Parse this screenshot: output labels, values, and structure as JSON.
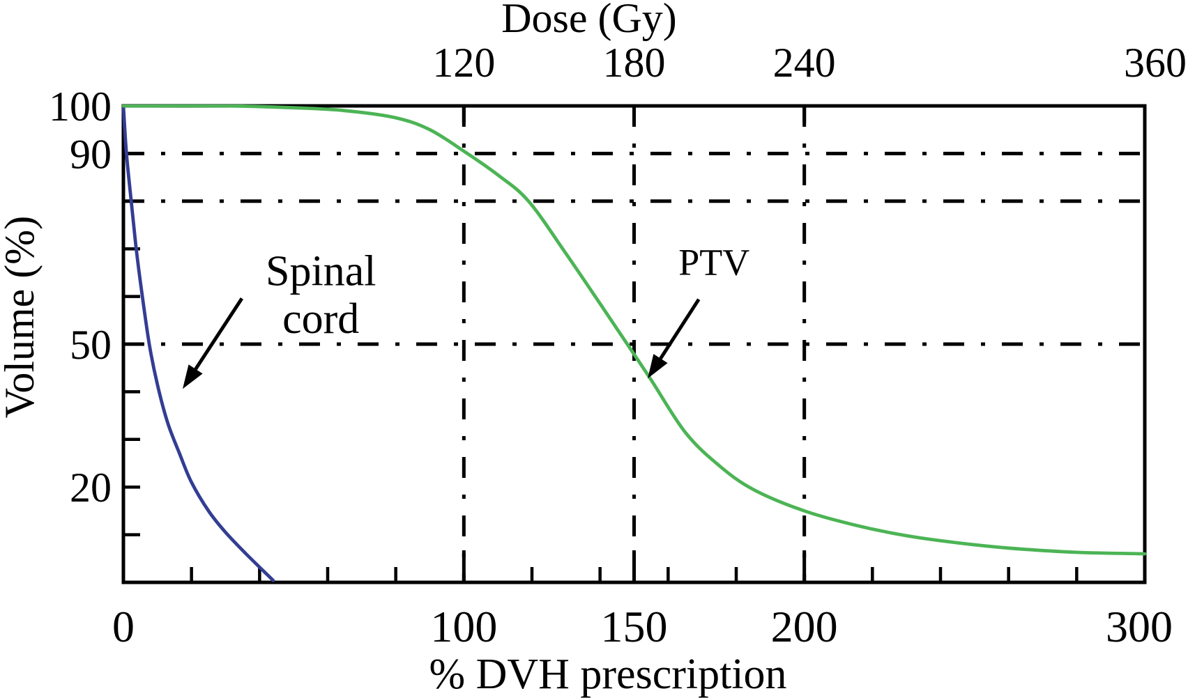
{
  "figure": {
    "background": "#ffffff",
    "ink_color": "#000000"
  },
  "chart_data": {
    "type": "line",
    "title": "",
    "top_axis": {
      "label": "Dose (Gy)",
      "tick_labels": [
        {
          "value": 100,
          "label": "120",
          "dx": 0
        },
        {
          "value": 150,
          "label": "180",
          "dx": 0
        },
        {
          "value": 200,
          "label": "240",
          "dx": 0
        },
        {
          "value": 300,
          "label": "360",
          "dx": 15
        }
      ],
      "major_ticks": [
        100,
        150,
        200
      ],
      "font_size": 60
    },
    "x_axis": {
      "label": "% DVH prescription",
      "range": [
        0,
        300
      ],
      "tick_labels": [
        {
          "value": 0,
          "label": "0",
          "dx": 0
        },
        {
          "value": 100,
          "label": "100",
          "dx": 0
        },
        {
          "value": 150,
          "label": "150",
          "dx": 0
        },
        {
          "value": 200,
          "label": "200",
          "dx": 0
        },
        {
          "value": 300,
          "label": "300",
          "dx": -8
        }
      ],
      "major_ticks": [
        100,
        150,
        200
      ],
      "minor_ticks": [
        20,
        40,
        60,
        80,
        120,
        140,
        160,
        180,
        220,
        240,
        260,
        280
      ],
      "font_size": 64
    },
    "y_axis": {
      "label": "Volume (%)",
      "range": [
        0,
        100
      ],
      "tick_labels": [
        {
          "value": 100,
          "label": "100"
        },
        {
          "value": 90,
          "label": "90"
        },
        {
          "value": 50,
          "label": "50"
        },
        {
          "value": 20,
          "label": "20"
        }
      ],
      "minor_ticks": [
        10,
        20,
        30,
        40,
        50,
        60,
        70,
        80,
        90
      ],
      "font_size": 60
    },
    "gridlines": {
      "style": "dash-dot",
      "horizontal": [
        90,
        80,
        50
      ],
      "vertical": [
        100,
        150,
        200
      ]
    },
    "series": [
      {
        "name": "Spinal cord",
        "color": "#333d93",
        "points": [
          [
            0,
            100
          ],
          [
            0.9,
            90
          ],
          [
            2.3,
            80
          ],
          [
            3.6,
            71
          ],
          [
            5,
            63
          ],
          [
            7.6,
            50
          ],
          [
            10,
            41.5
          ],
          [
            13,
            33.5
          ],
          [
            16.5,
            27
          ],
          [
            20,
            21
          ],
          [
            25,
            15
          ],
          [
            30,
            10.5
          ],
          [
            36,
            6
          ],
          [
            44,
            0.4
          ]
        ]
      },
      {
        "name": "PTV",
        "color": "#4cb455",
        "points": [
          [
            0,
            100
          ],
          [
            30,
            100
          ],
          [
            50,
            99.6
          ],
          [
            65,
            99
          ],
          [
            80,
            97.5
          ],
          [
            90,
            95
          ],
          [
            100,
            90.5
          ],
          [
            110,
            85.5
          ],
          [
            119,
            80
          ],
          [
            130,
            69
          ],
          [
            140,
            58.5
          ],
          [
            148,
            50
          ],
          [
            155,
            42.5
          ],
          [
            165,
            31.5
          ],
          [
            175,
            24.5
          ],
          [
            185,
            19.5
          ],
          [
            200,
            15
          ],
          [
            215,
            12
          ],
          [
            230,
            9.8
          ],
          [
            245,
            8.3
          ],
          [
            260,
            7.2
          ],
          [
            280,
            6.3
          ],
          [
            300,
            6
          ]
        ]
      }
    ],
    "annotations": [
      {
        "name": "spinal-cord",
        "lines": [
          "Spinal",
          "cord"
        ],
        "xy": [
          58,
          60.5
        ],
        "line_gap": 10,
        "font_size": 62,
        "arrow": {
          "from": [
            34.8,
            59.6
          ],
          "to": [
            17.4,
            40.6
          ]
        }
      },
      {
        "name": "ptv",
        "lines": [
          "PTV"
        ],
        "xy": [
          173.5,
          67.3
        ],
        "line_gap": 10,
        "font_size": 54,
        "arrow": {
          "from": [
            169,
            59.4
          ],
          "to": [
            154,
            42.8
          ]
        }
      }
    ]
  }
}
